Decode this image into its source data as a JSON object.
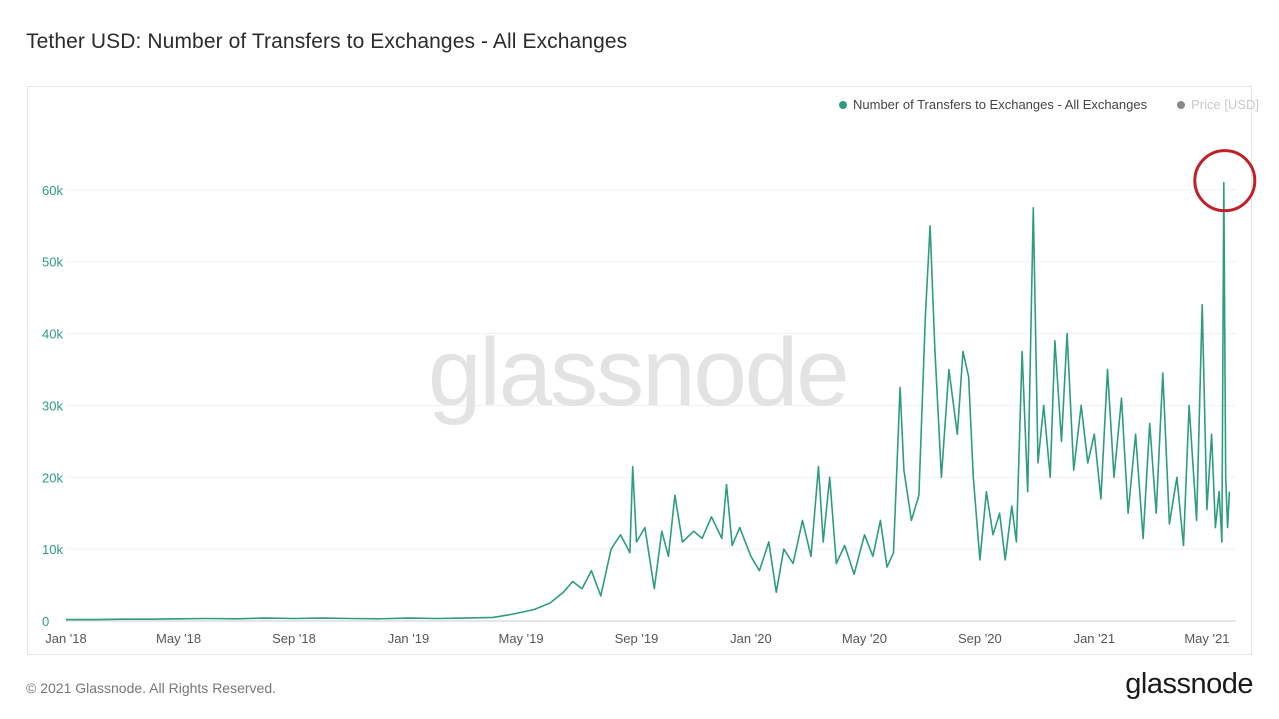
{
  "header": {
    "title": "Tether USD: Number of Transfers to Exchanges - All Exchanges"
  },
  "legend": {
    "items": [
      {
        "label": "Number of Transfers to Exchanges - All Exchanges",
        "color": "#2e9c7f"
      },
      {
        "label": "Price [USD]",
        "color": "#8a8a8a"
      }
    ]
  },
  "watermark": "glassnode",
  "footer": {
    "copyright": "© 2021 Glassnode. All Rights Reserved.",
    "logo": "glassnode"
  },
  "colors": {
    "series": "#2e9c7f",
    "axis_text": "#2e9c7f",
    "x_axis_text": "#555555",
    "highlight": "#c0202a",
    "grid": "#f0f0f0"
  },
  "chart_data": {
    "type": "line",
    "title": "Tether USD: Number of Transfers to Exchanges - All Exchanges",
    "x_range": [
      "2018-01-01",
      "2021-06-01"
    ],
    "ylim": [
      0,
      70000
    ],
    "y_ticks": [
      {
        "value": 0,
        "label": "0"
      },
      {
        "value": 10000,
        "label": "10k"
      },
      {
        "value": 20000,
        "label": "20k"
      },
      {
        "value": 30000,
        "label": "30k"
      },
      {
        "value": 40000,
        "label": "40k"
      },
      {
        "value": 50000,
        "label": "50k"
      },
      {
        "value": 60000,
        "label": "60k"
      }
    ],
    "x_ticks": [
      {
        "date": "2018-01-01",
        "label": "Jan '18"
      },
      {
        "date": "2018-05-01",
        "label": "May '18"
      },
      {
        "date": "2018-09-01",
        "label": "Sep '18"
      },
      {
        "date": "2019-01-01",
        "label": "Jan '19"
      },
      {
        "date": "2019-05-01",
        "label": "May '19"
      },
      {
        "date": "2019-09-01",
        "label": "Sep '19"
      },
      {
        "date": "2020-01-01",
        "label": "Jan '20"
      },
      {
        "date": "2020-05-01",
        "label": "May '20"
      },
      {
        "date": "2020-09-01",
        "label": "Sep '20"
      },
      {
        "date": "2021-01-01",
        "label": "Jan '21"
      },
      {
        "date": "2021-05-01",
        "label": "May '21"
      }
    ],
    "legend_position": "top-right",
    "grid": true,
    "annotation": {
      "type": "circle",
      "date": "2021-05-19",
      "value": 61000,
      "color": "#c0202a"
    },
    "series": [
      {
        "name": "Number of Transfers to Exchanges - All Exchanges",
        "color": "#2e9c7f",
        "points": [
          [
            "2018-01-01",
            200
          ],
          [
            "2018-02-01",
            200
          ],
          [
            "2018-03-01",
            250
          ],
          [
            "2018-04-01",
            250
          ],
          [
            "2018-05-01",
            300
          ],
          [
            "2018-06-01",
            350
          ],
          [
            "2018-07-01",
            300
          ],
          [
            "2018-08-01",
            400
          ],
          [
            "2018-09-01",
            350
          ],
          [
            "2018-10-01",
            400
          ],
          [
            "2018-11-01",
            350
          ],
          [
            "2018-12-01",
            300
          ],
          [
            "2019-01-01",
            400
          ],
          [
            "2019-02-01",
            350
          ],
          [
            "2019-03-01",
            400
          ],
          [
            "2019-04-01",
            500
          ],
          [
            "2019-04-20",
            900
          ],
          [
            "2019-05-01",
            1200
          ],
          [
            "2019-05-15",
            1600
          ],
          [
            "2019-06-01",
            2500
          ],
          [
            "2019-06-15",
            4000
          ],
          [
            "2019-06-25",
            5500
          ],
          [
            "2019-07-05",
            4500
          ],
          [
            "2019-07-15",
            7000
          ],
          [
            "2019-07-25",
            3500
          ],
          [
            "2019-08-05",
            10000
          ],
          [
            "2019-08-15",
            12000
          ],
          [
            "2019-08-25",
            9500
          ],
          [
            "2019-08-28",
            21500
          ],
          [
            "2019-09-01",
            11000
          ],
          [
            "2019-09-10",
            13000
          ],
          [
            "2019-09-20",
            4500
          ],
          [
            "2019-09-28",
            12500
          ],
          [
            "2019-10-05",
            9000
          ],
          [
            "2019-10-12",
            17500
          ],
          [
            "2019-10-20",
            11000
          ],
          [
            "2019-11-01",
            12500
          ],
          [
            "2019-11-10",
            11500
          ],
          [
            "2019-11-20",
            14500
          ],
          [
            "2019-12-01",
            11500
          ],
          [
            "2019-12-06",
            19000
          ],
          [
            "2019-12-12",
            10500
          ],
          [
            "2019-12-20",
            13000
          ],
          [
            "2020-01-01",
            9000
          ],
          [
            "2020-01-10",
            7000
          ],
          [
            "2020-01-20",
            11000
          ],
          [
            "2020-01-28",
            4000
          ],
          [
            "2020-02-05",
            10000
          ],
          [
            "2020-02-15",
            8000
          ],
          [
            "2020-02-25",
            14000
          ],
          [
            "2020-03-05",
            9000
          ],
          [
            "2020-03-13",
            21500
          ],
          [
            "2020-03-18",
            11000
          ],
          [
            "2020-03-25",
            20000
          ],
          [
            "2020-04-01",
            8000
          ],
          [
            "2020-04-10",
            10500
          ],
          [
            "2020-04-20",
            6500
          ],
          [
            "2020-05-01",
            12000
          ],
          [
            "2020-05-10",
            9000
          ],
          [
            "2020-05-18",
            14000
          ],
          [
            "2020-05-25",
            7500
          ],
          [
            "2020-06-01",
            9500
          ],
          [
            "2020-06-08",
            32500
          ],
          [
            "2020-06-12",
            21000
          ],
          [
            "2020-06-20",
            14000
          ],
          [
            "2020-06-28",
            17500
          ],
          [
            "2020-07-05",
            42500
          ],
          [
            "2020-07-10",
            55000
          ],
          [
            "2020-07-15",
            38000
          ],
          [
            "2020-07-22",
            20000
          ],
          [
            "2020-07-30",
            35000
          ],
          [
            "2020-08-08",
            26000
          ],
          [
            "2020-08-14",
            37500
          ],
          [
            "2020-08-20",
            34000
          ],
          [
            "2020-08-25",
            20000
          ],
          [
            "2020-09-01",
            8500
          ],
          [
            "2020-09-08",
            18000
          ],
          [
            "2020-09-15",
            12000
          ],
          [
            "2020-09-22",
            15000
          ],
          [
            "2020-09-28",
            8500
          ],
          [
            "2020-10-05",
            16000
          ],
          [
            "2020-10-10",
            11000
          ],
          [
            "2020-10-16",
            37500
          ],
          [
            "2020-10-22",
            18000
          ],
          [
            "2020-10-28",
            57500
          ],
          [
            "2020-11-02",
            22000
          ],
          [
            "2020-11-08",
            30000
          ],
          [
            "2020-11-15",
            20000
          ],
          [
            "2020-11-20",
            39000
          ],
          [
            "2020-11-27",
            25000
          ],
          [
            "2020-12-03",
            40000
          ],
          [
            "2020-12-10",
            21000
          ],
          [
            "2020-12-18",
            30000
          ],
          [
            "2020-12-25",
            22000
          ],
          [
            "2021-01-01",
            26000
          ],
          [
            "2021-01-08",
            17000
          ],
          [
            "2021-01-15",
            35000
          ],
          [
            "2021-01-22",
            20000
          ],
          [
            "2021-01-30",
            31000
          ],
          [
            "2021-02-06",
            15000
          ],
          [
            "2021-02-14",
            26000
          ],
          [
            "2021-02-22",
            11500
          ],
          [
            "2021-03-01",
            27500
          ],
          [
            "2021-03-08",
            15000
          ],
          [
            "2021-03-15",
            34500
          ],
          [
            "2021-03-22",
            13500
          ],
          [
            "2021-03-30",
            20000
          ],
          [
            "2021-04-06",
            10500
          ],
          [
            "2021-04-12",
            30000
          ],
          [
            "2021-04-20",
            14000
          ],
          [
            "2021-04-26",
            44000
          ],
          [
            "2021-05-01",
            15500
          ],
          [
            "2021-05-06",
            26000
          ],
          [
            "2021-05-10",
            13000
          ],
          [
            "2021-05-14",
            18000
          ],
          [
            "2021-05-17",
            11000
          ],
          [
            "2021-05-19",
            61000
          ],
          [
            "2021-05-21",
            20000
          ],
          [
            "2021-05-23",
            13000
          ],
          [
            "2021-05-25",
            18000
          ]
        ]
      }
    ]
  }
}
